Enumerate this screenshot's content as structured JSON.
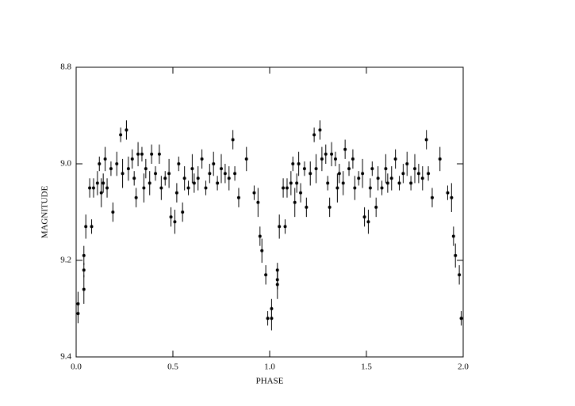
{
  "chart_data": {
    "type": "scatter",
    "x_label": "PHASE",
    "y_label": "MAGNITUDE",
    "xlim": [
      0,
      2
    ],
    "ylim": [
      8.8,
      9.4
    ],
    "y_inverted": true,
    "xticks": [
      {
        "value": 0,
        "label": "0.0"
      },
      0.5,
      {
        "value": 1,
        "label": "1.0"
      },
      1.5,
      {
        "value": 2,
        "label": "2.0"
      }
    ],
    "yticks": [
      8.8,
      {
        "value": 9,
        "label": "9.0"
      },
      9.2,
      9.4
    ],
    "color": "#000000",
    "x": [
      0.01,
      0.01,
      0.04,
      0.04,
      0.04,
      0.05,
      0.07,
      0.08,
      0.09,
      0.11,
      0.12,
      0.13,
      0.14,
      0.15,
      0.16,
      0.18,
      0.19,
      0.21,
      0.23,
      0.24,
      0.26,
      0.27,
      0.29,
      0.3,
      0.31,
      0.32,
      0.34,
      0.35,
      0.36,
      0.38,
      0.39,
      0.41,
      0.43,
      0.44,
      0.46,
      0.48,
      0.49,
      0.51,
      0.52,
      0.53,
      0.55,
      0.56,
      0.58,
      0.6,
      0.61,
      0.63,
      0.65,
      0.67,
      0.69,
      0.71,
      0.73,
      0.75,
      0.77,
      0.79,
      0.81,
      0.82,
      0.84,
      0.88,
      0.92,
      0.94,
      0.95,
      0.96,
      0.98,
      0.99,
      1.01,
      1.01,
      1.04,
      1.04,
      1.04,
      1.05,
      1.07,
      1.08,
      1.09,
      1.11,
      1.12,
      1.13,
      1.14,
      1.15,
      1.16,
      1.18,
      1.19,
      1.21,
      1.23,
      1.24,
      1.26,
      1.27,
      1.29,
      1.3,
      1.31,
      1.32,
      1.34,
      1.35,
      1.36,
      1.38,
      1.39,
      1.41,
      1.43,
      1.44,
      1.46,
      1.48,
      1.49,
      1.51,
      1.52,
      1.53,
      1.55,
      1.56,
      1.58,
      1.6,
      1.61,
      1.63,
      1.65,
      1.67,
      1.69,
      1.71,
      1.73,
      1.75,
      1.77,
      1.79,
      1.81,
      1.82,
      1.84,
      1.88,
      1.92,
      1.94,
      1.95,
      1.96,
      1.98,
      1.99
    ],
    "values": [
      9.31,
      9.29,
      9.22,
      9.26,
      9.19,
      9.13,
      9.05,
      9.13,
      9.05,
      9.04,
      9.0,
      9.06,
      9.04,
      8.99,
      9.05,
      9.01,
      9.1,
      9.0,
      8.94,
      9.02,
      8.93,
      9.01,
      8.99,
      9.03,
      9.07,
      8.98,
      8.98,
      9.05,
      9.01,
      9.04,
      8.98,
      9.02,
      8.98,
      9.05,
      9.03,
      9.02,
      9.11,
      9.12,
      9.06,
      9.0,
      9.1,
      9.03,
      9.05,
      9.01,
      9.04,
      9.03,
      8.99,
      9.05,
      9.02,
      9.0,
      9.04,
      9.01,
      9.02,
      9.03,
      8.95,
      9.02,
      9.07,
      8.99,
      9.06,
      9.08,
      9.15,
      9.18,
      9.23,
      9.32,
      9.3,
      9.32,
      9.22,
      9.25,
      9.24,
      9.13,
      9.05,
      9.13,
      9.05,
      9.04,
      9.0,
      9.08,
      9.04,
      9.0,
      9.06,
      9.01,
      9.09,
      9.02,
      8.94,
      9.01,
      8.93,
      8.99,
      8.98,
      9.04,
      9.09,
      8.98,
      8.99,
      9.05,
      9.02,
      9.04,
      8.97,
      9.01,
      8.99,
      9.05,
      9.03,
      9.02,
      9.11,
      9.12,
      9.05,
      9.01,
      9.09,
      9.03,
      9.05,
      9.01,
      9.04,
      9.03,
      8.99,
      9.04,
      9.02,
      9.0,
      9.04,
      9.01,
      9.02,
      9.03,
      8.95,
      9.02,
      9.07,
      8.99,
      9.06,
      9.07,
      9.15,
      9.19,
      9.23,
      9.32
    ],
    "errors": [
      0.02,
      0.025,
      0.015,
      0.03,
      0.02,
      0.025,
      0.02,
      0.015,
      0.02,
      0.025,
      0.015,
      0.03,
      0.02,
      0.025,
      0.02,
      0.015,
      0.02,
      0.025,
      0.015,
      0.03,
      0.02,
      0.025,
      0.02,
      0.015,
      0.02,
      0.025,
      0.015,
      0.03,
      0.02,
      0.025,
      0.02,
      0.015,
      0.02,
      0.025,
      0.015,
      0.03,
      0.02,
      0.025,
      0.02,
      0.015,
      0.02,
      0.025,
      0.015,
      0.03,
      0.02,
      0.025,
      0.02,
      0.015,
      0.02,
      0.025,
      0.015,
      0.03,
      0.02,
      0.025,
      0.02,
      0.015,
      0.02,
      0.025,
      0.015,
      0.03,
      0.02,
      0.025,
      0.02,
      0.015,
      0.02,
      0.025,
      0.015,
      0.03,
      0.02,
      0.025,
      0.02,
      0.015,
      0.02,
      0.025,
      0.015,
      0.03,
      0.02,
      0.025,
      0.02,
      0.015,
      0.02,
      0.025,
      0.015,
      0.03,
      0.02,
      0.025,
      0.02,
      0.015,
      0.02,
      0.025,
      0.015,
      0.03,
      0.02,
      0.025,
      0.02,
      0.015,
      0.02,
      0.025,
      0.015,
      0.03,
      0.02,
      0.025,
      0.02,
      0.015,
      0.02,
      0.025,
      0.015,
      0.03,
      0.02,
      0.025,
      0.02,
      0.015,
      0.02,
      0.025,
      0.015,
      0.03,
      0.02,
      0.025,
      0.02,
      0.015,
      0.02,
      0.025,
      0.015,
      0.03,
      0.02,
      0.025,
      0.02,
      0.015
    ]
  }
}
